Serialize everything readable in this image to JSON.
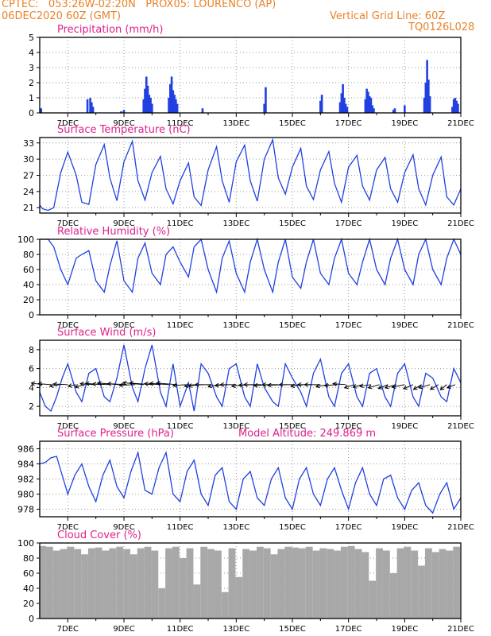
{
  "header": {
    "line1": "CPTEC:   053:26W-02:20N   PROX05: LOURENCO (AP)",
    "line2": "06DEC2020 60Z (GMT)",
    "vgrid": "Vertical Grid Line: 60Z",
    "code": "TQ0126L028",
    "model_altitude": "Model Altitude: 249.869 m"
  },
  "colors": {
    "header": "#e8832a",
    "title": "#e0208c",
    "series": "#2040e0",
    "cloud": "#a8a8a8",
    "grid": "#9a9a9a"
  },
  "chart_data": [
    {
      "type": "bar",
      "title": "Precipitation (mm/h)",
      "xlabel": "",
      "ylabel": "",
      "x_ticks": [
        "7DEC",
        "9DEC",
        "11DEC",
        "13DEC",
        "15DEC",
        "17DEC",
        "19DEC",
        "21DEC"
      ],
      "x_range_days": [
        6.0,
        21.0
      ],
      "ylim": [
        0,
        5
      ],
      "yticks": [
        0,
        1,
        2,
        3,
        4,
        5
      ],
      "grid": true,
      "x": [
        6.05,
        7.7,
        7.8,
        7.85,
        7.9,
        8.9,
        9.0,
        9.7,
        9.75,
        9.8,
        9.85,
        9.9,
        9.95,
        10.0,
        10.6,
        10.65,
        10.7,
        10.75,
        10.8,
        10.85,
        10.9,
        11.8,
        14.0,
        14.05,
        16.0,
        16.05,
        16.7,
        16.75,
        16.8,
        16.85,
        16.9,
        16.95,
        17.6,
        17.65,
        17.7,
        17.75,
        17.8,
        17.85,
        17.9,
        18.6,
        18.65,
        19.0,
        19.7,
        19.75,
        19.8,
        19.85,
        19.9,
        20.7,
        20.75,
        20.8,
        20.85,
        20.9
      ],
      "values": [
        0.3,
        0.9,
        1.0,
        0.7,
        0.4,
        0.1,
        0.2,
        0.9,
        1.6,
        2.4,
        1.8,
        1.2,
        1.0,
        0.6,
        1.0,
        1.9,
        2.4,
        1.5,
        1.2,
        0.9,
        0.6,
        0.3,
        0.6,
        1.7,
        0.8,
        1.2,
        0.7,
        1.3,
        1.9,
        1.0,
        0.6,
        0.4,
        0.9,
        1.6,
        1.4,
        1.1,
        1.0,
        0.5,
        0.3,
        0.2,
        0.3,
        0.5,
        1.0,
        2.0,
        3.5,
        2.2,
        1.1,
        0.4,
        0.9,
        1.0,
        0.8,
        0.6
      ]
    },
    {
      "type": "line",
      "title": "Surface Temperature (nC)",
      "xlabel": "",
      "ylabel": "",
      "x_ticks": [
        "7DEC",
        "9DEC",
        "11DEC",
        "13DEC",
        "15DEC",
        "17DEC",
        "19DEC",
        "21DEC"
      ],
      "ylim": [
        20,
        34
      ],
      "yticks": [
        21,
        24,
        27,
        30,
        33
      ],
      "grid": true,
      "x": [
        6.0,
        6.1,
        6.3,
        6.5,
        6.75,
        7.0,
        7.3,
        7.5,
        7.75,
        8.0,
        8.3,
        8.5,
        8.75,
        9.0,
        9.3,
        9.5,
        9.75,
        10.0,
        10.3,
        10.5,
        10.75,
        11.0,
        11.3,
        11.5,
        11.75,
        12.0,
        12.3,
        12.5,
        12.75,
        13.0,
        13.3,
        13.5,
        13.75,
        14.0,
        14.3,
        14.5,
        14.75,
        15.0,
        15.3,
        15.5,
        15.75,
        16.0,
        16.3,
        16.5,
        16.75,
        17.0,
        17.3,
        17.5,
        17.75,
        18.0,
        18.3,
        18.5,
        18.75,
        19.0,
        19.3,
        19.5,
        19.75,
        20.0,
        20.3,
        20.5,
        20.75,
        21.0
      ],
      "values": [
        21.5,
        20.8,
        20.5,
        21.0,
        27.5,
        31.3,
        27.0,
        22.0,
        21.6,
        29.0,
        32.7,
        26.5,
        22.3,
        29.5,
        33.3,
        26.0,
        22.4,
        27.5,
        30.5,
        24.5,
        21.7,
        26.0,
        29.3,
        23.0,
        21.4,
        28.0,
        32.3,
        26.0,
        22.0,
        29.5,
        32.6,
        26.0,
        22.2,
        30.0,
        33.6,
        26.5,
        23.5,
        28.5,
        32.0,
        25.0,
        22.5,
        28.0,
        31.4,
        25.5,
        22.0,
        28.5,
        30.7,
        25.0,
        22.4,
        28.0,
        30.3,
        24.5,
        22.0,
        27.5,
        30.8,
        24.5,
        21.5,
        27.0,
        30.4,
        23.0,
        21.5,
        24.5
      ]
    },
    {
      "type": "line",
      "title": "Relative Humidity (%)",
      "xlabel": "",
      "ylabel": "",
      "x_ticks": [
        "7DEC",
        "9DEC",
        "11DEC",
        "13DEC",
        "15DEC",
        "17DEC",
        "19DEC",
        "21DEC"
      ],
      "ylim": [
        0,
        100
      ],
      "yticks": [
        0,
        20,
        40,
        60,
        80,
        100
      ],
      "grid": true,
      "x": [
        6.0,
        6.3,
        6.5,
        6.75,
        7.0,
        7.3,
        7.5,
        7.75,
        8.0,
        8.3,
        8.5,
        8.75,
        9.0,
        9.3,
        9.5,
        9.75,
        10.0,
        10.3,
        10.5,
        10.75,
        11.0,
        11.3,
        11.5,
        11.75,
        12.0,
        12.3,
        12.5,
        12.75,
        13.0,
        13.3,
        13.5,
        13.75,
        14.0,
        14.3,
        14.5,
        14.75,
        15.0,
        15.3,
        15.5,
        15.75,
        16.0,
        16.3,
        16.5,
        16.75,
        17.0,
        17.3,
        17.5,
        17.75,
        18.0,
        18.3,
        18.5,
        18.75,
        19.0,
        19.3,
        19.5,
        19.75,
        20.0,
        20.3,
        20.5,
        20.75,
        21.0
      ],
      "values": [
        100,
        100,
        90,
        60,
        40,
        75,
        80,
        85,
        45,
        30,
        65,
        98,
        45,
        30,
        75,
        95,
        55,
        40,
        80,
        90,
        70,
        50,
        90,
        100,
        60,
        30,
        75,
        98,
        55,
        30,
        70,
        100,
        60,
        30,
        70,
        100,
        50,
        35,
        70,
        100,
        55,
        40,
        75,
        100,
        55,
        40,
        70,
        100,
        60,
        40,
        75,
        100,
        60,
        40,
        80,
        100,
        60,
        40,
        75,
        100,
        80
      ]
    },
    {
      "type": "line",
      "title": "Surface Wind (m/s)",
      "xlabel": "",
      "ylabel": "",
      "x_ticks": [
        "7DEC",
        "9DEC",
        "11DEC",
        "13DEC",
        "15DEC",
        "17DEC",
        "19DEC",
        "21DEC"
      ],
      "ylim": [
        1,
        9
      ],
      "yticks": [
        2,
        4,
        6,
        8
      ],
      "grid": true,
      "x": [
        6.0,
        6.2,
        6.4,
        6.6,
        6.8,
        7.0,
        7.3,
        7.5,
        7.75,
        8.0,
        8.3,
        8.5,
        8.75,
        9.0,
        9.3,
        9.5,
        9.75,
        10.0,
        10.3,
        10.5,
        10.75,
        11.0,
        11.3,
        11.5,
        11.75,
        12.0,
        12.3,
        12.5,
        12.75,
        13.0,
        13.3,
        13.5,
        13.75,
        14.0,
        14.3,
        14.5,
        14.75,
        15.0,
        15.3,
        15.5,
        15.75,
        16.0,
        16.3,
        16.5,
        16.75,
        17.0,
        17.3,
        17.5,
        17.75,
        18.0,
        18.3,
        18.5,
        18.75,
        19.0,
        19.3,
        19.5,
        19.75,
        20.0,
        20.3,
        20.5,
        20.75,
        21.0
      ],
      "values": [
        3.5,
        2.0,
        1.5,
        3.0,
        5.0,
        6.5,
        3.5,
        2.5,
        5.5,
        6.0,
        3.0,
        2.5,
        5.0,
        8.5,
        4.0,
        2.5,
        6.0,
        8.5,
        3.5,
        2.0,
        6.5,
        2.0,
        4.5,
        1.5,
        6.5,
        5.5,
        3.0,
        2.0,
        6.0,
        6.5,
        3.0,
        2.0,
        6.5,
        4.0,
        2.5,
        2.0,
        6.5,
        5.0,
        3.5,
        2.0,
        5.5,
        7.0,
        3.0,
        2.0,
        5.5,
        6.5,
        3.0,
        2.0,
        5.5,
        6.0,
        3.0,
        2.0,
        5.5,
        6.5,
        3.0,
        2.0,
        5.5,
        5.0,
        3.0,
        2.5,
        6.0,
        4.5
      ],
      "vectors": {
        "x": [
          6.1,
          6.4,
          6.7,
          7.0,
          7.3,
          7.6,
          7.9,
          8.2,
          8.5,
          8.8,
          9.1,
          9.4,
          9.7,
          10.0,
          10.3,
          10.6,
          10.9,
          11.2,
          11.5,
          11.8,
          12.1,
          12.4,
          12.7,
          13.0,
          13.3,
          13.6,
          13.9,
          14.2,
          14.5,
          14.8,
          15.1,
          15.4,
          15.7,
          16.0,
          16.3,
          16.6,
          16.9,
          17.2,
          17.5,
          17.8,
          18.1,
          18.4,
          18.7,
          19.0,
          19.3,
          19.6,
          19.9,
          20.2,
          20.5,
          20.8
        ],
        "u": [
          -3.5,
          -4.0,
          -3.0,
          -4.5,
          -2.5,
          -3.0,
          -4.0,
          -5.0,
          -5.5,
          -6.5,
          -6.0,
          -5.0,
          -6.5,
          -7.0,
          -5.0,
          -6.0,
          -6.5,
          -4.0,
          -3.0,
          -4.5,
          -5.0,
          -3.5,
          -4.0,
          -5.0,
          -4.0,
          -4.5,
          -5.5,
          -5.0,
          -5.0,
          -6.0,
          -5.0,
          -4.0,
          -4.5,
          -5.0,
          -4.0,
          -4.0,
          -4.0,
          -3.0,
          -3.0,
          -3.5,
          -3.5,
          -3.0,
          -3.5,
          -4.0,
          -3.0,
          -2.5,
          -3.5,
          -2.5,
          -2.0,
          -2.5
        ],
        "v": [
          0.5,
          0.3,
          -0.5,
          0.2,
          -0.5,
          -0.8,
          0.3,
          0.4,
          0.2,
          0.5,
          0.3,
          -0.2,
          0.6,
          0.5,
          0.3,
          0.4,
          0.5,
          -0.3,
          -0.5,
          -0.4,
          0.0,
          -0.6,
          -0.3,
          0.0,
          -0.5,
          -0.2,
          0.0,
          -0.3,
          0.0,
          -0.2,
          0.0,
          -0.5,
          0.0,
          0.0,
          -0.6,
          -0.3,
          0.3,
          -1.0,
          -0.8,
          -0.5,
          -1.0,
          -1.2,
          -1.0,
          -0.8,
          -1.3,
          -1.5,
          -1.0,
          -1.5,
          -1.6,
          -1.0
        ]
      }
    },
    {
      "type": "line",
      "title": "Surface Pressure (hPa)",
      "xlabel": "",
      "ylabel": "",
      "x_ticks": [
        "7DEC",
        "9DEC",
        "11DEC",
        "13DEC",
        "15DEC",
        "17DEC",
        "19DEC",
        "21DEC"
      ],
      "ylim": [
        977,
        987
      ],
      "yticks": [
        978,
        980,
        982,
        984,
        986
      ],
      "grid": true,
      "x": [
        6.0,
        6.2,
        6.4,
        6.6,
        6.8,
        7.0,
        7.25,
        7.5,
        7.75,
        8.0,
        8.25,
        8.5,
        8.75,
        9.0,
        9.25,
        9.5,
        9.75,
        10.0,
        10.25,
        10.5,
        10.75,
        11.0,
        11.25,
        11.5,
        11.75,
        12.0,
        12.25,
        12.5,
        12.75,
        13.0,
        13.25,
        13.5,
        13.75,
        14.0,
        14.25,
        14.5,
        14.75,
        15.0,
        15.25,
        15.5,
        15.75,
        16.0,
        16.25,
        16.5,
        16.75,
        17.0,
        17.25,
        17.5,
        17.75,
        18.0,
        18.25,
        18.5,
        18.75,
        19.0,
        19.25,
        19.5,
        19.75,
        20.0,
        20.25,
        20.5,
        20.75,
        21.0
      ],
      "values": [
        984.0,
        984.2,
        984.8,
        985.0,
        982.5,
        980.0,
        982.5,
        984.0,
        981.0,
        979.0,
        982.5,
        984.5,
        981.0,
        979.5,
        983.0,
        985.5,
        980.5,
        980.0,
        983.5,
        985.5,
        980.0,
        979.0,
        983.0,
        984.5,
        980.0,
        978.5,
        982.5,
        983.5,
        979.0,
        978.0,
        982.0,
        983.0,
        979.5,
        978.5,
        982.0,
        983.5,
        979.5,
        978.0,
        982.0,
        983.5,
        980.0,
        978.5,
        982.0,
        983.5,
        980.5,
        978.0,
        981.5,
        983.5,
        980.0,
        978.5,
        982.0,
        982.5,
        979.5,
        978.0,
        980.5,
        981.5,
        978.5,
        977.5,
        980.0,
        981.5,
        978.0,
        979.5
      ]
    },
    {
      "type": "bar",
      "title": "Cloud Cover (%)",
      "xlabel": "",
      "ylabel": "",
      "x_ticks": [
        "7DEC",
        "9DEC",
        "11DEC",
        "13DEC",
        "15DEC",
        "17DEC",
        "19DEC",
        "21DEC"
      ],
      "ylim": [
        0,
        100
      ],
      "yticks": [
        0,
        20,
        40,
        60,
        80,
        100
      ],
      "grid": true,
      "x": [
        6.1,
        6.35,
        6.6,
        6.85,
        7.1,
        7.35,
        7.6,
        7.85,
        8.1,
        8.35,
        8.6,
        8.85,
        9.1,
        9.35,
        9.6,
        9.85,
        10.1,
        10.35,
        10.6,
        10.85,
        11.1,
        11.35,
        11.6,
        11.85,
        12.1,
        12.35,
        12.6,
        12.85,
        13.1,
        13.35,
        13.6,
        13.85,
        14.1,
        14.35,
        14.6,
        14.85,
        15.1,
        15.35,
        15.6,
        15.85,
        16.1,
        16.35,
        16.6,
        16.85,
        17.1,
        17.35,
        17.6,
        17.85,
        18.1,
        18.35,
        18.6,
        18.85,
        19.1,
        19.35,
        19.6,
        19.85,
        20.1,
        20.35,
        20.6,
        20.85
      ],
      "values": [
        96,
        95,
        90,
        92,
        95,
        92,
        85,
        93,
        94,
        90,
        93,
        95,
        92,
        85,
        93,
        95,
        90,
        40,
        93,
        95,
        80,
        93,
        45,
        95,
        92,
        90,
        35,
        93,
        55,
        92,
        90,
        95,
        93,
        85,
        92,
        95,
        94,
        93,
        95,
        90,
        93,
        92,
        90,
        95,
        96,
        92,
        88,
        50,
        93,
        90,
        60,
        93,
        95,
        90,
        70,
        93,
        88,
        92,
        90,
        95
      ]
    }
  ]
}
